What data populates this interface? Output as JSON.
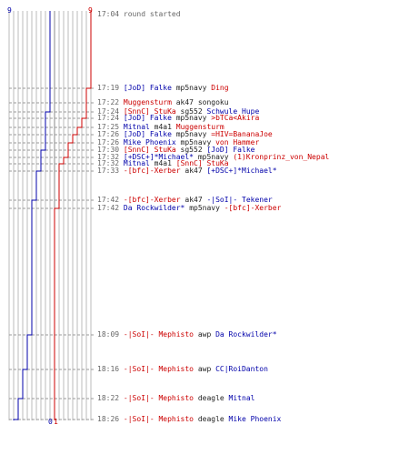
{
  "scoreboard": {
    "top_left": "9",
    "top_right": "9",
    "bottom_left": "0",
    "bottom_right": "1"
  },
  "colors": {
    "blue": "#0000aa",
    "red": "#cc0000",
    "grid": "#bbbbbb",
    "time": "#666666"
  },
  "events": [
    {
      "time": "17:04",
      "text": "round started"
    },
    {
      "time": "17:19",
      "killer": "[JoD] Falke",
      "kteam": "b",
      "weapon": "mp5navy",
      "victim": "Ding",
      "vteam": "r"
    },
    {
      "time": "17:22",
      "killer": "Muggensturm",
      "kteam": "r",
      "weapon": "ak47",
      "victim": "songoku",
      "vteam": "k"
    },
    {
      "time": "17:24",
      "killer": "[SnnC] StuKa",
      "kteam": "r",
      "weapon": "sg552",
      "victim": "Schwule Hupe",
      "vteam": "b"
    },
    {
      "time": "17:24",
      "killer": "[JoD] Falke",
      "kteam": "b",
      "weapon": "mp5navy",
      "victim": ">bTCa<Akira",
      "vteam": "r"
    },
    {
      "time": "17:25",
      "killer": "Mitnal",
      "kteam": "b",
      "weapon": "m4a1",
      "victim": "Muggensturm",
      "vteam": "r"
    },
    {
      "time": "17:26",
      "killer": "[JoD] Falke",
      "kteam": "b",
      "weapon": "mp5navy",
      "victim": "=HIV=BananaJoe",
      "vteam": "r"
    },
    {
      "time": "17:26",
      "killer": "Mike Phoenix",
      "kteam": "b",
      "weapon": "mp5navy",
      "victim": "von Hammer",
      "vteam": "r"
    },
    {
      "time": "17:30",
      "killer": "[SnnC] StuKa",
      "kteam": "r",
      "weapon": "sg552",
      "victim": "[JoD] Falke",
      "vteam": "b"
    },
    {
      "time": "17:32",
      "killer": "[+DSC+]*Michael*",
      "kteam": "b",
      "weapon": "mp5navy",
      "victim": "(1)Kronprinz_von_Nepal",
      "vteam": "r"
    },
    {
      "time": "17:32",
      "killer": "Mitnal",
      "kteam": "b",
      "weapon": "m4a1",
      "victim": "[SnnC] StuKa",
      "vteam": "r"
    },
    {
      "time": "17:33",
      "killer": "-[bfc]-Xerber",
      "kteam": "r",
      "weapon": "ak47",
      "victim": "[+DSC+]*Michael*",
      "vteam": "b"
    },
    {
      "time": "17:42",
      "killer": "-[bfc]-Xerber",
      "kteam": "r",
      "weapon": "ak47",
      "victim": "-|SoI|- Tekener",
      "vteam": "b"
    },
    {
      "time": "17:42",
      "killer": "Da Rockwilder*",
      "kteam": "b",
      "weapon": "mp5navy",
      "victim": "-[bfc]-Xerber",
      "vteam": "r"
    },
    {
      "time": "18:09",
      "killer": "-|SoI|- Mephisto",
      "kteam": "r",
      "weapon": "awp",
      "victim": "Da Rockwilder*",
      "vteam": "b"
    },
    {
      "time": "18:16",
      "killer": "-|SoI|- Mephisto",
      "kteam": "r",
      "weapon": "awp",
      "victim": "CC|RoiDanton",
      "vteam": "b"
    },
    {
      "time": "18:22",
      "killer": "-|SoI|- Mephisto",
      "kteam": "r",
      "weapon": "deagle",
      "victim": "Mitnal",
      "vteam": "b"
    },
    {
      "time": "18:26",
      "killer": "-|SoI|- Mephisto",
      "kteam": "r",
      "weapon": "deagle",
      "victim": "Mike Phoenix",
      "vteam": "b"
    }
  ]
}
